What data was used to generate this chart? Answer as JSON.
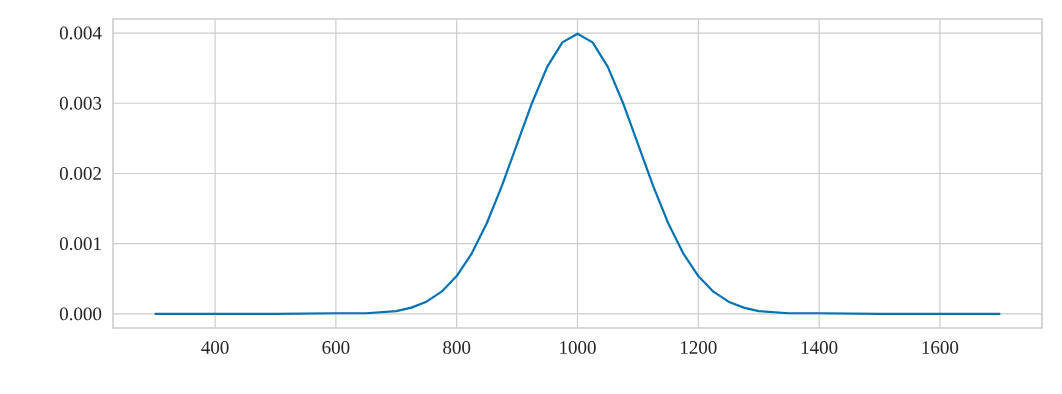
{
  "chart_data": {
    "type": "line",
    "x": [
      300,
      400,
      500,
      600,
      650,
      700,
      725,
      750,
      775,
      800,
      825,
      850,
      875,
      900,
      925,
      950,
      975,
      1000,
      1025,
      1050,
      1075,
      1100,
      1125,
      1150,
      1175,
      1200,
      1225,
      1250,
      1275,
      1300,
      1350,
      1400,
      1500,
      1600,
      1700
    ],
    "series": [
      {
        "color": "#0173b2",
        "values": [
          0,
          0,
          0,
          1e-05,
          1e-05,
          4e-05,
          9e-05,
          0.000175,
          0.000317,
          0.00054,
          0.000863,
          0.001295,
          0.001826,
          0.00242,
          0.003011,
          0.003521,
          0.003867,
          0.00399,
          0.003867,
          0.003521,
          0.003011,
          0.00242,
          0.001826,
          0.001295,
          0.000863,
          0.00054,
          0.000317,
          0.000175,
          9e-05,
          4e-05,
          1e-05,
          1e-05,
          0,
          0,
          0
        ]
      }
    ],
    "xlim": [
      231,
      1769
    ],
    "ylim": [
      -0.0002,
      0.0042
    ],
    "xticks": [
      400,
      600,
      800,
      1000,
      1200,
      1400,
      1600
    ],
    "yticks": [
      {
        "value": 0,
        "label": "0.000"
      },
      {
        "value": 0.001,
        "label": "0.001"
      },
      {
        "value": 0.002,
        "label": "0.002"
      },
      {
        "value": 0.003,
        "label": "0.003"
      },
      {
        "value": 0.004,
        "label": "0.004"
      }
    ],
    "grid": true,
    "marker": "none",
    "line_style": "solid"
  }
}
